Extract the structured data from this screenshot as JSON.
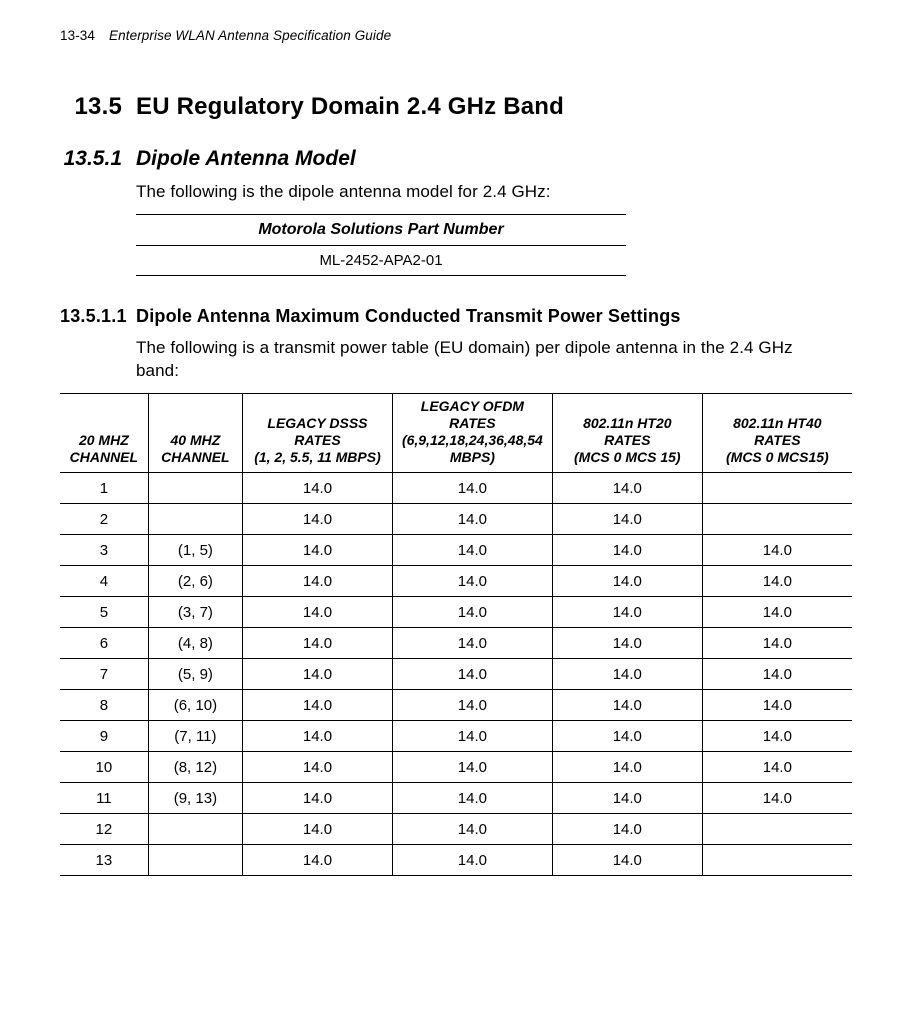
{
  "page": {
    "number": "13-34",
    "title": "Enterprise WLAN Antenna Specification Guide"
  },
  "section": {
    "num": "13.5",
    "title": "EU Regulatory Domain   2.4 GHz Band"
  },
  "subsection": {
    "num": "13.5.1",
    "title": "Dipole Antenna Model",
    "intro": "The following is the dipole antenna model for 2.4 GHz:"
  },
  "pn_table": {
    "header": "Motorola Solutions Part Number",
    "value": "ML-2452-APA2-01"
  },
  "subsub": {
    "num": "13.5.1.1",
    "title": "Dipole Antenna Maximum Conducted Transmit Power Settings",
    "intro": "The following is a transmit power table (EU domain) per dipole antenna in the 2.4 GHz band:"
  },
  "power_table": {
    "headers": {
      "c20": "20 MHZ CHANNEL",
      "c40": "40 MHZ CHANNEL",
      "dsss_a": "LEGACY DSSS RATES",
      "dsss_b": "(1, 2, 5.5, 11 MBPS)",
      "ofdm_a": "LEGACY OFDM RATES",
      "ofdm_b": "(6,9,12,18,24,36,48,54 MBPS)",
      "ht20_a": "802.11n HT20 RATES",
      "ht20_b": "(MCS 0  MCS 15)",
      "ht40_a": "802.11n HT40 RATES",
      "ht40_b": "(MCS 0  MCS15)"
    },
    "rows": [
      {
        "c20": "1",
        "c40": "",
        "dsss": "14.0",
        "ofdm": "14.0",
        "ht20": "14.0",
        "ht40": ""
      },
      {
        "c20": "2",
        "c40": "",
        "dsss": "14.0",
        "ofdm": "14.0",
        "ht20": "14.0",
        "ht40": ""
      },
      {
        "c20": "3",
        "c40": "(1, 5)",
        "dsss": "14.0",
        "ofdm": "14.0",
        "ht20": "14.0",
        "ht40": "14.0"
      },
      {
        "c20": "4",
        "c40": "(2, 6)",
        "dsss": "14.0",
        "ofdm": "14.0",
        "ht20": "14.0",
        "ht40": "14.0"
      },
      {
        "c20": "5",
        "c40": "(3, 7)",
        "dsss": "14.0",
        "ofdm": "14.0",
        "ht20": "14.0",
        "ht40": "14.0"
      },
      {
        "c20": "6",
        "c40": "(4, 8)",
        "dsss": "14.0",
        "ofdm": "14.0",
        "ht20": "14.0",
        "ht40": "14.0"
      },
      {
        "c20": "7",
        "c40": "(5, 9)",
        "dsss": "14.0",
        "ofdm": "14.0",
        "ht20": "14.0",
        "ht40": "14.0"
      },
      {
        "c20": "8",
        "c40": "(6, 10)",
        "dsss": "14.0",
        "ofdm": "14.0",
        "ht20": "14.0",
        "ht40": "14.0"
      },
      {
        "c20": "9",
        "c40": "(7, 11)",
        "dsss": "14.0",
        "ofdm": "14.0",
        "ht20": "14.0",
        "ht40": "14.0"
      },
      {
        "c20": "10",
        "c40": "(8, 12)",
        "dsss": "14.0",
        "ofdm": "14.0",
        "ht20": "14.0",
        "ht40": "14.0"
      },
      {
        "c20": "11",
        "c40": "(9, 13)",
        "dsss": "14.0",
        "ofdm": "14.0",
        "ht20": "14.0",
        "ht40": "14.0"
      },
      {
        "c20": "12",
        "c40": "",
        "dsss": "14.0",
        "ofdm": "14.0",
        "ht20": "14.0",
        "ht40": ""
      },
      {
        "c20": "13",
        "c40": "",
        "dsss": "14.0",
        "ofdm": "14.0",
        "ht20": "14.0",
        "ht40": ""
      }
    ]
  }
}
